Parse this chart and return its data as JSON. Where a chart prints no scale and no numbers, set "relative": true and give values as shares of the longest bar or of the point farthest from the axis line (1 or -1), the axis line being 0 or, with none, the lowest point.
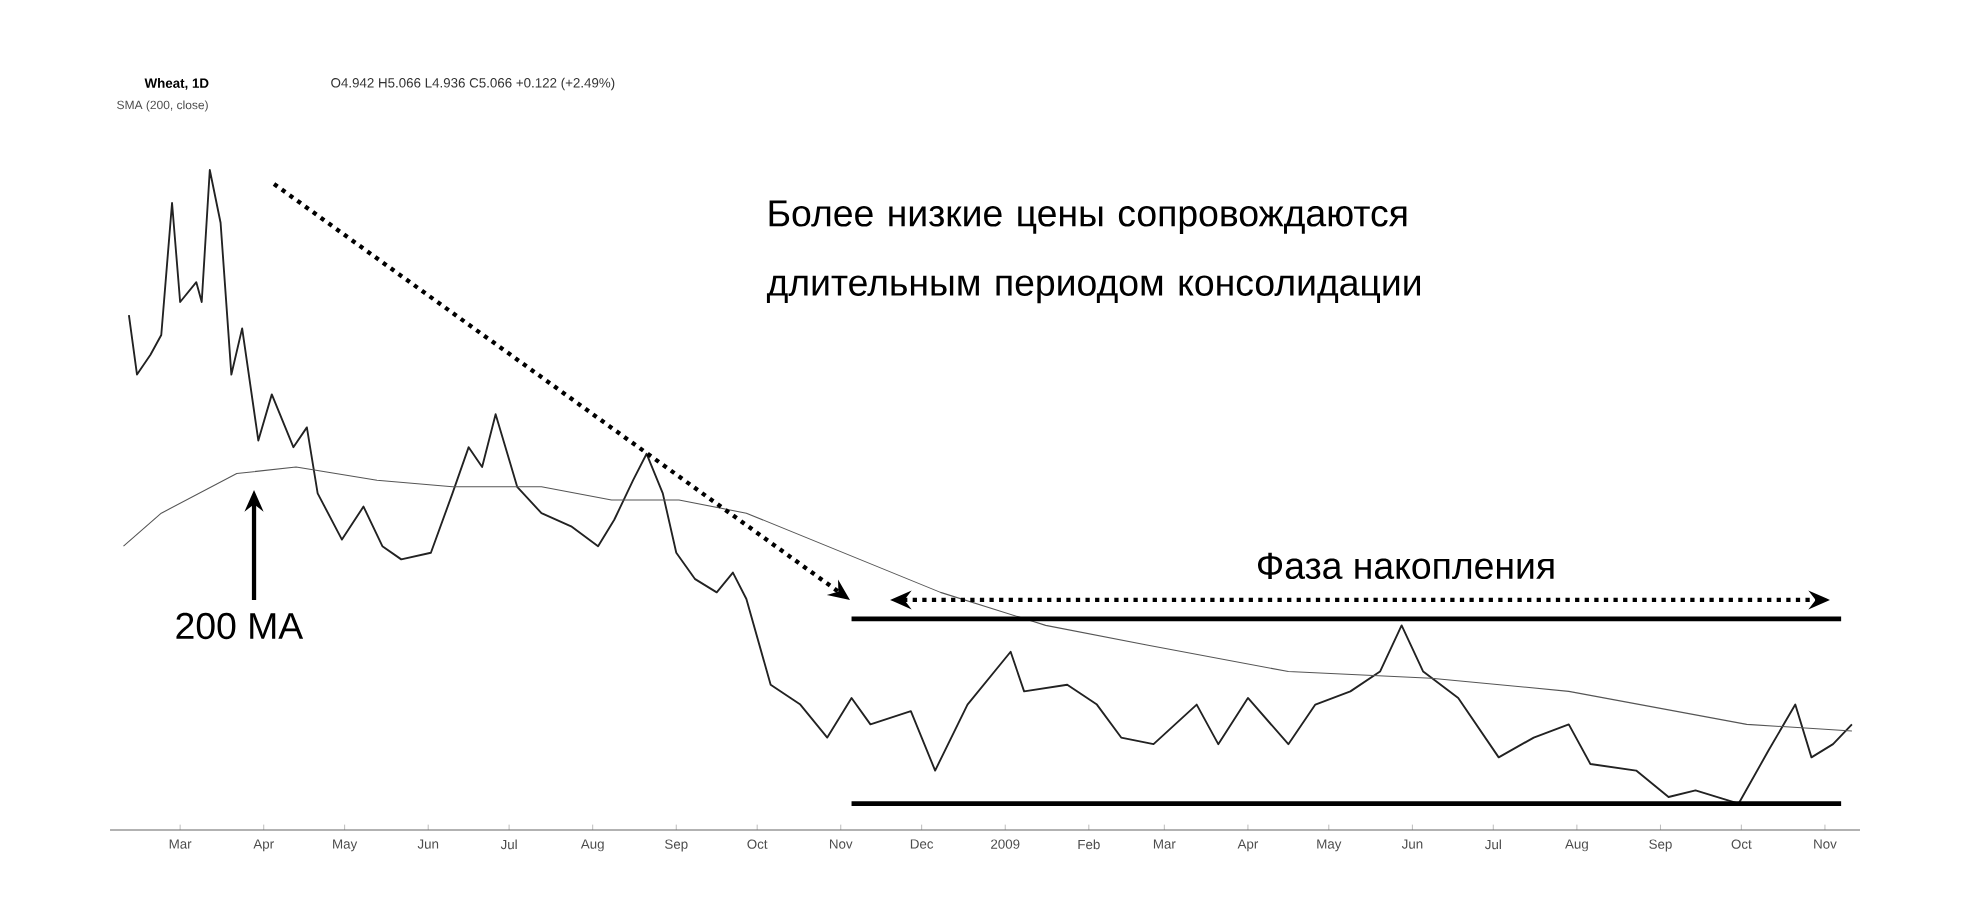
{
  "chart_data": {
    "type": "line",
    "title": "Wheat, 1D",
    "subtitle": "SMA (200, close)",
    "relative": true,
    "xlim": [
      "2008-02-04",
      "2009-11-14"
    ],
    "xticks": [
      {
        "value": "2008-03-01",
        "label": "Mar"
      },
      {
        "value": "2008-04-01",
        "label": "Apr"
      },
      {
        "value": "2008-05-01",
        "label": "May"
      },
      {
        "value": "2008-06-01",
        "label": "Jun"
      },
      {
        "value": "2008-07-01",
        "label": "Jul"
      },
      {
        "value": "2008-08-01",
        "label": "Aug"
      },
      {
        "value": "2008-09-01",
        "label": "Sep"
      },
      {
        "value": "2008-10-01",
        "label": "Oct"
      },
      {
        "value": "2008-11-01",
        "label": "Nov"
      },
      {
        "value": "2008-12-01",
        "label": "Dec"
      },
      {
        "value": "2009-01-01",
        "label": "2009"
      },
      {
        "value": "2009-02-01",
        "label": "Feb"
      },
      {
        "value": "2009-03-01",
        "label": "Mar"
      },
      {
        "value": "2009-04-01",
        "label": "Apr"
      },
      {
        "value": "2009-05-01",
        "label": "May"
      },
      {
        "value": "2009-06-01",
        "label": "Jun"
      },
      {
        "value": "2009-07-01",
        "label": "Jul"
      },
      {
        "value": "2009-08-01",
        "label": "Aug"
      },
      {
        "value": "2009-09-01",
        "label": "Sep"
      },
      {
        "value": "2009-10-01",
        "label": "Oct"
      },
      {
        "value": "2009-11-01",
        "label": "Nov"
      }
    ],
    "series": [
      {
        "color": "#222222",
        "x": [
          "2008-02-11",
          "2008-02-14",
          "2008-02-19",
          "2008-02-23",
          "2008-02-27",
          "2008-03-01",
          "2008-03-07",
          "2008-03-09",
          "2008-03-12",
          "2008-03-16",
          "2008-03-20",
          "2008-03-24",
          "2008-03-30",
          "2008-04-04",
          "2008-04-12",
          "2008-04-17",
          "2008-04-21",
          "2008-04-30",
          "2008-05-08",
          "2008-05-15",
          "2008-05-22",
          "2008-06-02",
          "2008-06-10",
          "2008-06-16",
          "2008-06-21",
          "2008-06-26",
          "2008-07-04",
          "2008-07-13",
          "2008-07-24",
          "2008-08-03",
          "2008-08-09",
          "2008-08-16",
          "2008-08-21",
          "2008-08-27",
          "2008-09-01",
          "2008-09-08",
          "2008-09-16",
          "2008-09-22",
          "2008-09-27",
          "2008-10-06",
          "2008-10-17",
          "2008-10-27",
          "2008-11-05",
          "2008-11-12",
          "2008-11-27",
          "2008-12-06",
          "2008-12-18",
          "2009-01-03",
          "2009-01-08",
          "2009-01-24",
          "2009-02-04",
          "2009-02-13",
          "2009-02-25",
          "2009-03-13",
          "2009-03-21",
          "2009-04-01",
          "2009-04-16",
          "2009-04-26",
          "2009-05-09",
          "2009-05-20",
          "2009-05-28",
          "2009-06-05",
          "2009-06-18",
          "2009-07-03",
          "2009-07-16",
          "2009-07-29",
          "2009-08-06",
          "2009-08-23",
          "2009-09-04",
          "2009-09-14",
          "2009-09-30",
          "2009-10-11",
          "2009-10-21",
          "2009-10-27",
          "2009-11-04",
          "2009-11-11"
        ],
        "values": [
          0.78,
          0.69,
          0.72,
          0.75,
          0.95,
          0.8,
          0.83,
          0.8,
          1.0,
          0.92,
          0.69,
          0.76,
          0.59,
          0.66,
          0.58,
          0.61,
          0.51,
          0.44,
          0.49,
          0.43,
          0.41,
          0.42,
          0.51,
          0.58,
          0.55,
          0.63,
          0.52,
          0.48,
          0.46,
          0.43,
          0.47,
          0.53,
          0.57,
          0.51,
          0.42,
          0.38,
          0.36,
          0.39,
          0.35,
          0.22,
          0.19,
          0.14,
          0.2,
          0.16,
          0.18,
          0.09,
          0.19,
          0.27,
          0.21,
          0.22,
          0.19,
          0.14,
          0.13,
          0.19,
          0.13,
          0.2,
          0.13,
          0.19,
          0.21,
          0.24,
          0.31,
          0.24,
          0.2,
          0.11,
          0.14,
          0.16,
          0.1,
          0.09,
          0.05,
          0.06,
          0.04,
          0.12,
          0.19,
          0.11,
          0.13,
          0.16
        ]
      },
      {
        "color": "#555555",
        "x": [
          "2008-02-09",
          "2008-02-23",
          "2008-03-22",
          "2008-04-13",
          "2008-05-13",
          "2008-06-10",
          "2008-07-13",
          "2008-08-08",
          "2008-09-02",
          "2008-09-27",
          "2008-12-08",
          "2009-01-16",
          "2009-02-23",
          "2009-04-16",
          "2009-06-08",
          "2009-07-29",
          "2009-10-03",
          "2009-11-11"
        ],
        "values": [
          0.43,
          0.48,
          0.54,
          0.55,
          0.53,
          0.52,
          0.52,
          0.5,
          0.5,
          0.48,
          0.36,
          0.31,
          0.28,
          0.24,
          0.23,
          0.21,
          0.16,
          0.15
        ]
      },
      {
        "color": "#000000",
        "x": [
          "2008-11-05",
          "2009-11-07"
        ],
        "values": [
          0.32,
          0.32
        ]
      },
      {
        "color": "#000000",
        "x": [
          "2008-11-05",
          "2009-11-07"
        ],
        "values": [
          0.04,
          0.04
        ]
      }
    ],
    "annotations": [
      "O4.942 H5.066 L4.936 C5.066 +0.122 (+2.49%)",
      "Более низкие цены сопровождаются длительным периодом консолидации",
      "Фаза накопления",
      "200 MA"
    ]
  }
}
